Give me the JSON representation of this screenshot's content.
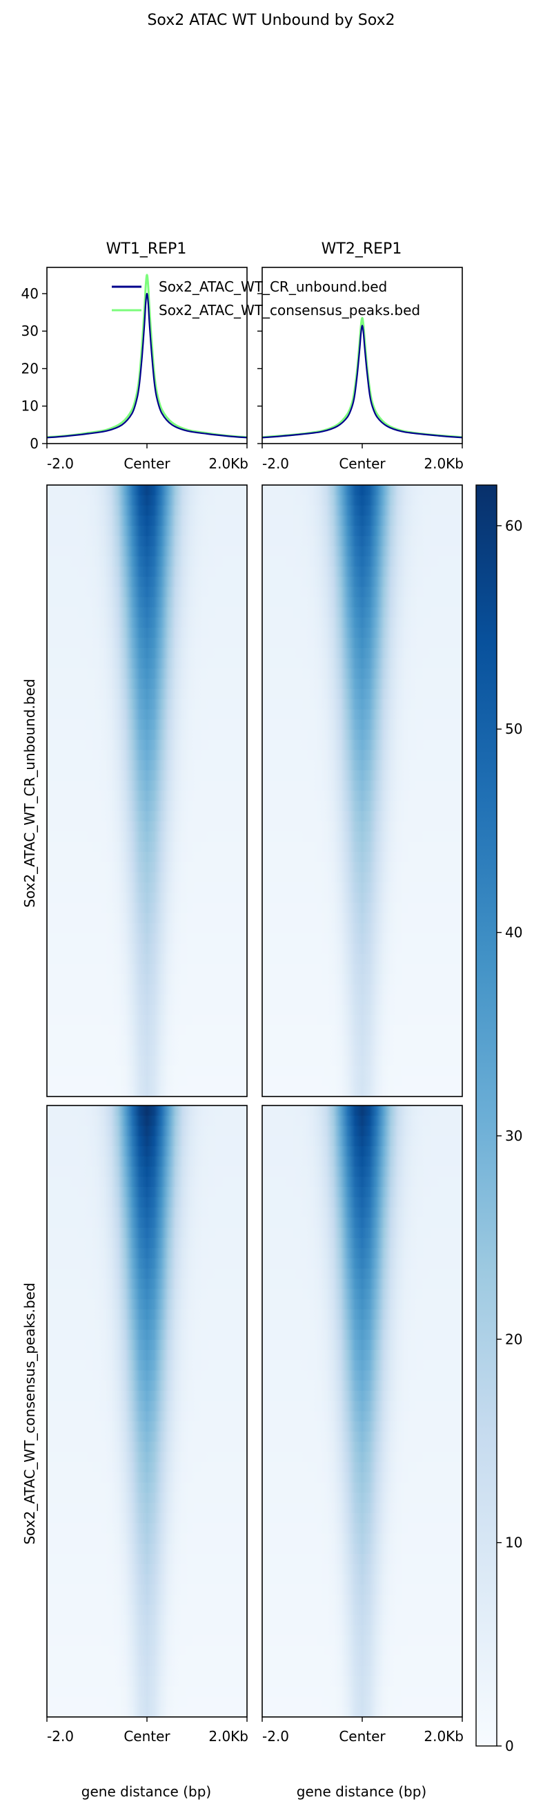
{
  "figure": {
    "title": "Sox2 ATAC WT Unbound by Sox2"
  },
  "colors": {
    "series_unbound": "#00008b",
    "series_consensus": "#7cfc7c",
    "heatmap_colormap": [
      "#f7fbff",
      "#deebf7",
      "#c6dbef",
      "#9ecae1",
      "#6baed6",
      "#4292c6",
      "#2171b5",
      "#08519c",
      "#08306b"
    ]
  },
  "chart_data": [
    {
      "type": "line",
      "panel": "profile-wt1",
      "title": "WT1_REP1",
      "x_ticks": [
        "-2.0",
        "Center",
        "2.0Kb"
      ],
      "y_ticks": [
        "0",
        "10",
        "20",
        "30",
        "40"
      ],
      "ylim": [
        0,
        47
      ],
      "xlim": [
        -2000,
        2000
      ],
      "legend": "top-right",
      "x": [
        -2000,
        -1600,
        -1200,
        -800,
        -500,
        -300,
        -200,
        -150,
        -100,
        -50,
        -25,
        0,
        25,
        50,
        100,
        150,
        200,
        300,
        500,
        800,
        1200,
        1600,
        2000
      ],
      "series": [
        {
          "name": "Sox2_ATAC_WT_CR_unbound.bed",
          "values": [
            1.6,
            2.0,
            2.6,
            3.4,
            5.0,
            8.0,
            12.0,
            16.0,
            23.0,
            32.0,
            37.5,
            40.0,
            37.5,
            32.0,
            23.0,
            16.0,
            12.0,
            8.0,
            5.0,
            3.4,
            2.6,
            2.0,
            1.6
          ]
        },
        {
          "name": "Sox2_ATAC_WT_consensus_peaks.bed",
          "values": [
            1.7,
            2.1,
            2.8,
            3.7,
            5.6,
            9.0,
            13.5,
            18.0,
            26.0,
            36.0,
            42.0,
            45.0,
            42.0,
            36.0,
            26.0,
            18.0,
            13.5,
            9.0,
            5.6,
            3.7,
            2.8,
            2.1,
            1.7
          ]
        }
      ]
    },
    {
      "type": "line",
      "panel": "profile-wt2",
      "title": "WT2_REP1",
      "x_ticks": [
        "-2.0",
        "Center",
        "2.0Kb"
      ],
      "ylim": [
        0,
        47
      ],
      "xlim": [
        -2000,
        2000
      ],
      "x": [
        -2000,
        -1600,
        -1200,
        -800,
        -500,
        -300,
        -200,
        -150,
        -100,
        -50,
        -25,
        0,
        25,
        50,
        100,
        150,
        200,
        300,
        500,
        800,
        1200,
        1600,
        2000
      ],
      "series": [
        {
          "name": "Sox2_ATAC_WT_CR_unbound.bed",
          "values": [
            1.6,
            2.0,
            2.5,
            3.2,
            4.6,
            7.0,
            10.0,
            13.0,
            18.5,
            25.5,
            29.5,
            31.5,
            29.5,
            25.5,
            18.5,
            13.0,
            10.0,
            7.0,
            4.6,
            3.2,
            2.5,
            2.0,
            1.6
          ]
        },
        {
          "name": "Sox2_ATAC_WT_consensus_peaks.bed",
          "values": [
            1.7,
            2.1,
            2.6,
            3.4,
            5.0,
            7.8,
            11.0,
            14.5,
            20.0,
            27.5,
            31.5,
            33.5,
            31.5,
            27.5,
            20.0,
            14.5,
            11.0,
            7.8,
            5.0,
            3.4,
            2.6,
            2.1,
            1.7
          ]
        }
      ]
    },
    {
      "type": "heatmap",
      "rows": [
        {
          "ylabel": "Sox2_ATAC_WT_CR_unbound.bed",
          "peak_top": [
            58,
            55
          ],
          "peak_bottom": [
            12,
            11
          ]
        },
        {
          "ylabel": "Sox2_ATAC_WT_consensus_peaks.bed",
          "peak_top": [
            62,
            60
          ],
          "peak_bottom": [
            12,
            12
          ]
        }
      ],
      "columns": [
        "WT1_REP1",
        "WT2_REP1"
      ],
      "x_ticks": [
        "-2.0",
        "Center",
        "2.0Kb"
      ],
      "xlabel": "gene distance (bp)",
      "colorbar": {
        "vmin": 0,
        "vmax": 62,
        "ticks": [
          "0",
          "10",
          "20",
          "30",
          "40",
          "50",
          "60"
        ]
      }
    }
  ]
}
